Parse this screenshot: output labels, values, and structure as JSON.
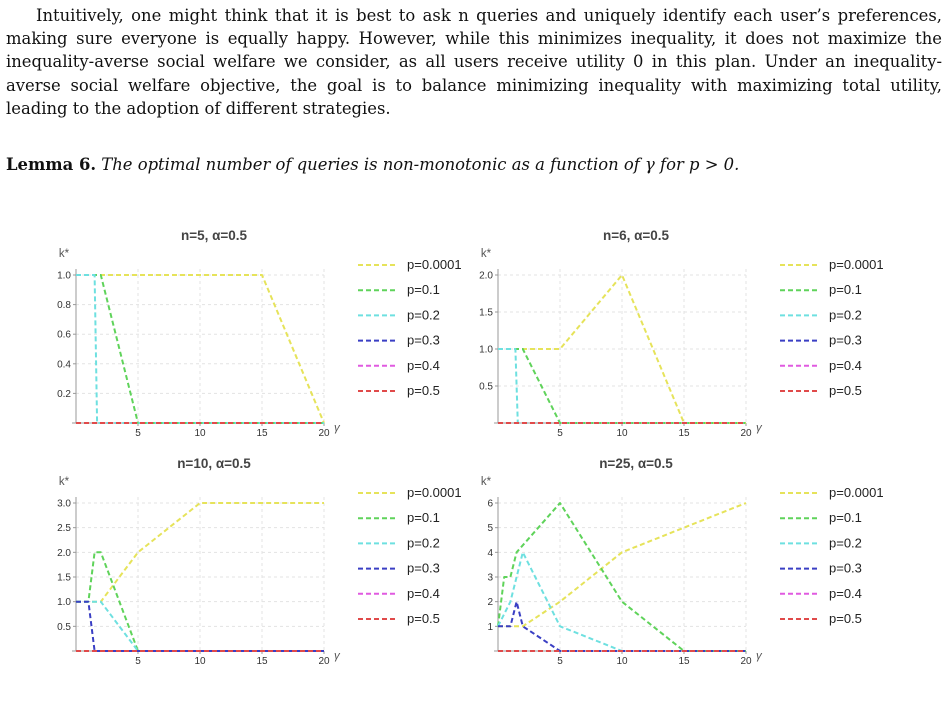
{
  "paragraph": {
    "text": "Intuitively, one might think that it is best to ask n queries and uniquely identify each user’s preferences, making sure everyone is equally happy. However, while this minimizes inequality, it does not maximize the inequality-averse social welfare we consider, as all users receive utility 0 in this plan. Under an inequality-averse social welfare objective, the goal is to balance minimizing inequality with maximizing total utility, leading to the adoption of different strategies."
  },
  "lemma": {
    "label": "Lemma 6.",
    "body": "The optimal number of queries is non-monotonic as a function of γ for p > 0."
  },
  "colors": {
    "p=0.0001": "#e6e35a",
    "p=0.1": "#5fd35a",
    "p=0.2": "#6ee0e0",
    "p=0.3": "#3a3fc4",
    "p=0.4": "#e05ae0",
    "p=0.5": "#e04a4a"
  },
  "chart_data": [
    {
      "type": "line",
      "title": "n=5, α=0.5",
      "xlabel": "γ",
      "ylabel": "k*",
      "xlim": [
        0,
        20
      ],
      "ylim": [
        0,
        1.0
      ],
      "xticks": [
        5,
        10,
        15,
        20
      ],
      "yticks": [
        0.2,
        0.4,
        0.6,
        0.8,
        1.0
      ],
      "ytick_labels": [
        "0.2",
        "0.4",
        "0.6",
        "0.8",
        "1.0"
      ],
      "legend_position": "right",
      "series": [
        {
          "name": "p=0.0001",
          "x": [
            0,
            15,
            20
          ],
          "y": [
            1,
            1,
            0
          ]
        },
        {
          "name": "p=0.1",
          "x": [
            0,
            2,
            5,
            20
          ],
          "y": [
            1,
            1,
            0,
            0
          ]
        },
        {
          "name": "p=0.2",
          "x": [
            0,
            1.5,
            1.7,
            20
          ],
          "y": [
            1,
            1,
            0,
            0
          ]
        },
        {
          "name": "p=0.3",
          "x": [
            0,
            20
          ],
          "y": [
            0,
            0
          ]
        },
        {
          "name": "p=0.4",
          "x": [
            0,
            20
          ],
          "y": [
            0,
            0
          ]
        },
        {
          "name": "p=0.5",
          "x": [
            0,
            20
          ],
          "y": [
            0,
            0
          ]
        }
      ]
    },
    {
      "type": "line",
      "title": "n=6, α=0.5",
      "xlabel": "γ",
      "ylabel": "k*",
      "xlim": [
        0,
        20
      ],
      "ylim": [
        0,
        2.0
      ],
      "xticks": [
        5,
        10,
        15,
        20
      ],
      "yticks": [
        0.5,
        1.0,
        1.5,
        2.0
      ],
      "ytick_labels": [
        "0.5",
        "1.0",
        "1.5",
        "2.0"
      ],
      "legend_position": "right",
      "series": [
        {
          "name": "p=0.0001",
          "x": [
            0,
            5,
            10,
            15,
            20
          ],
          "y": [
            1,
            1,
            2,
            0,
            0
          ]
        },
        {
          "name": "p=0.1",
          "x": [
            0,
            2,
            5,
            20
          ],
          "y": [
            1,
            1,
            0,
            0
          ]
        },
        {
          "name": "p=0.2",
          "x": [
            0,
            1.4,
            1.6,
            20
          ],
          "y": [
            1,
            1,
            0,
            0
          ]
        },
        {
          "name": "p=0.3",
          "x": [
            0,
            20
          ],
          "y": [
            0,
            0
          ]
        },
        {
          "name": "p=0.4",
          "x": [
            0,
            20
          ],
          "y": [
            0,
            0
          ]
        },
        {
          "name": "p=0.5",
          "x": [
            0,
            20
          ],
          "y": [
            0,
            0
          ]
        }
      ]
    },
    {
      "type": "line",
      "title": "n=10, α=0.5",
      "xlabel": "γ",
      "ylabel": "k*",
      "xlim": [
        0,
        20
      ],
      "ylim": [
        0,
        3.0
      ],
      "xticks": [
        5,
        10,
        15,
        20
      ],
      "yticks": [
        0.5,
        1.0,
        1.5,
        2.0,
        2.5,
        3.0
      ],
      "ytick_labels": [
        "0.5",
        "1.0",
        "1.5",
        "2.0",
        "2.5",
        "3.0"
      ],
      "legend_position": "right",
      "series": [
        {
          "name": "p=0.0001",
          "x": [
            0,
            2,
            5,
            10,
            20
          ],
          "y": [
            1,
            1,
            2,
            3,
            3
          ]
        },
        {
          "name": "p=0.1",
          "x": [
            0,
            1,
            1.5,
            2,
            5,
            20
          ],
          "y": [
            1,
            1,
            2,
            2,
            0,
            0
          ]
        },
        {
          "name": "p=0.2",
          "x": [
            0,
            2,
            5,
            20
          ],
          "y": [
            1,
            1,
            0,
            0
          ]
        },
        {
          "name": "p=0.3",
          "x": [
            0,
            1,
            1.5,
            20
          ],
          "y": [
            1,
            1,
            0,
            0
          ]
        },
        {
          "name": "p=0.4",
          "x": [
            0,
            20
          ],
          "y": [
            0,
            0
          ]
        },
        {
          "name": "p=0.5",
          "x": [
            0,
            20
          ],
          "y": [
            0,
            0
          ]
        }
      ]
    },
    {
      "type": "line",
      "title": "n=25, α=0.5",
      "xlabel": "γ",
      "ylabel": "k*",
      "xlim": [
        0,
        20
      ],
      "ylim": [
        0,
        6.0
      ],
      "xticks": [
        5,
        10,
        15,
        20
      ],
      "yticks": [
        1,
        2,
        3,
        4,
        5,
        6
      ],
      "ytick_labels": [
        "1",
        "2",
        "3",
        "4",
        "5",
        "6"
      ],
      "legend_position": "right",
      "series": [
        {
          "name": "p=0.0001",
          "x": [
            0,
            2,
            5,
            10,
            20
          ],
          "y": [
            1,
            1,
            2,
            4,
            6
          ]
        },
        {
          "name": "p=0.1",
          "x": [
            0,
            0.5,
            1,
            1.5,
            5,
            10,
            15,
            20
          ],
          "y": [
            1,
            3,
            3,
            4,
            6,
            2,
            0,
            0
          ]
        },
        {
          "name": "p=0.2",
          "x": [
            0,
            1,
            2,
            5,
            10,
            20
          ],
          "y": [
            1,
            2,
            4,
            1,
            0,
            0
          ]
        },
        {
          "name": "p=0.3",
          "x": [
            0,
            1,
            1.5,
            2,
            5,
            20
          ],
          "y": [
            1,
            1,
            2,
            1,
            0,
            0
          ]
        },
        {
          "name": "p=0.4",
          "x": [
            0,
            20
          ],
          "y": [
            0,
            0
          ]
        },
        {
          "name": "p=0.5",
          "x": [
            0,
            20
          ],
          "y": [
            0,
            0
          ]
        }
      ]
    }
  ]
}
